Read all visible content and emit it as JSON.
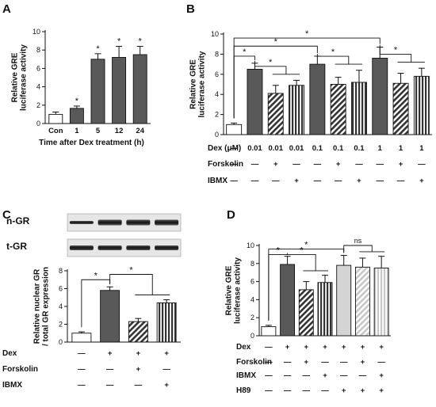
{
  "panel_letters": {
    "A": "A",
    "B": "B",
    "C": "C",
    "D": "D"
  },
  "chart_data": [
    {
      "panel": "A",
      "type": "bar",
      "categories": [
        "Con",
        "1",
        "5",
        "12",
        "24"
      ],
      "values": [
        1.0,
        1.65,
        7.0,
        7.2,
        7.5
      ],
      "errors": [
        0.25,
        0.25,
        0.6,
        1.2,
        0.9
      ],
      "fills": [
        "white",
        "gray",
        "gray",
        "gray",
        "gray"
      ],
      "significance": [
        "",
        "*",
        "*",
        "*",
        "*"
      ],
      "ylabel": "Relative GRE\nluciferase activity",
      "xlabel": "Time after Dex treatment (h)",
      "ylim": [
        0,
        10
      ],
      "yticks": [
        0,
        2,
        4,
        6,
        8,
        10
      ]
    },
    {
      "panel": "B",
      "type": "bar",
      "categories": [
        "1",
        "2",
        "3",
        "4",
        "5",
        "6",
        "7",
        "8",
        "9",
        "10"
      ],
      "values": [
        1.0,
        6.5,
        4.1,
        4.9,
        7.0,
        5.0,
        5.2,
        7.6,
        5.1,
        5.8
      ],
      "errors": [
        0.15,
        0.6,
        0.8,
        0.5,
        0.8,
        0.7,
        1.2,
        1.1,
        1.0,
        0.8
      ],
      "fills": [
        "white",
        "gray",
        "diag",
        "vert",
        "gray",
        "diag",
        "vert",
        "gray",
        "diag",
        "vert"
      ],
      "ylabel": "Relative GRE\nluciferase activity",
      "ylim": [
        0,
        10
      ],
      "yticks": [
        0,
        2,
        4,
        6,
        8,
        10
      ],
      "rows": [
        {
          "label": "Dex (μM)",
          "cells": [
            "—",
            "0.01",
            "0.01",
            "0.01",
            "0.1",
            "0.1",
            "0.1",
            "1",
            "1",
            "1"
          ]
        },
        {
          "label": "Forskolin",
          "cells": [
            "—",
            "—",
            "+",
            "—",
            "—",
            "+",
            "—",
            "—",
            "+",
            "—"
          ]
        },
        {
          "label": "IBMX",
          "cells": [
            "—",
            "—",
            "—",
            "+",
            "—",
            "—",
            "+",
            "—",
            "—",
            "+"
          ]
        }
      ],
      "significance_star": "*"
    },
    {
      "panel": "C",
      "type": "bar",
      "categories": [
        "1",
        "2",
        "3",
        "4"
      ],
      "values": [
        1.0,
        5.8,
        2.3,
        4.4
      ],
      "errors": [
        0.15,
        0.4,
        0.35,
        0.35
      ],
      "fills": [
        "white",
        "gray",
        "diag",
        "vert"
      ],
      "ylabel": "Relative nuclear GR\n/ total GR expression",
      "ylim": [
        0,
        8
      ],
      "yticks": [
        0,
        2,
        4,
        6,
        8
      ],
      "blot_labels": [
        "n-GR",
        "t-GR"
      ],
      "rows": [
        {
          "label": "Dex",
          "cells": [
            "—",
            "+",
            "+",
            "+"
          ]
        },
        {
          "label": "Forskolin",
          "cells": [
            "—",
            "—",
            "+",
            "—"
          ]
        },
        {
          "label": "IBMX",
          "cells": [
            "—",
            "—",
            "—",
            "+"
          ]
        }
      ],
      "significance_star": "*"
    },
    {
      "panel": "D",
      "type": "bar",
      "categories": [
        "1",
        "2",
        "3",
        "4",
        "5",
        "6",
        "7"
      ],
      "values": [
        1.0,
        7.9,
        5.1,
        5.9,
        7.8,
        7.6,
        7.5
      ],
      "errors": [
        0.15,
        0.9,
        0.9,
        0.8,
        1.1,
        1.0,
        1.3
      ],
      "fills": [
        "white",
        "gray",
        "diag",
        "vert",
        "light",
        "lightdiag",
        "lightvert"
      ],
      "ylabel": "Relative GRE\nluciferase activity",
      "ylim": [
        0,
        10
      ],
      "yticks": [
        0,
        2,
        4,
        6,
        8,
        10
      ],
      "rows": [
        {
          "label": "Dex",
          "cells": [
            "—",
            "+",
            "+",
            "+",
            "+",
            "+",
            "+"
          ]
        },
        {
          "label": "Forskolin",
          "cells": [
            "—",
            "—",
            "+",
            "—",
            "—",
            "+",
            "—"
          ]
        },
        {
          "label": "IBMX",
          "cells": [
            "—",
            "—",
            "—",
            "+",
            "—",
            "—",
            "+"
          ]
        },
        {
          "label": "H89",
          "cells": [
            "—",
            "—",
            "—",
            "—",
            "+",
            "+",
            "+"
          ]
        }
      ],
      "significance_star": "*",
      "ns_label": "ns"
    }
  ]
}
